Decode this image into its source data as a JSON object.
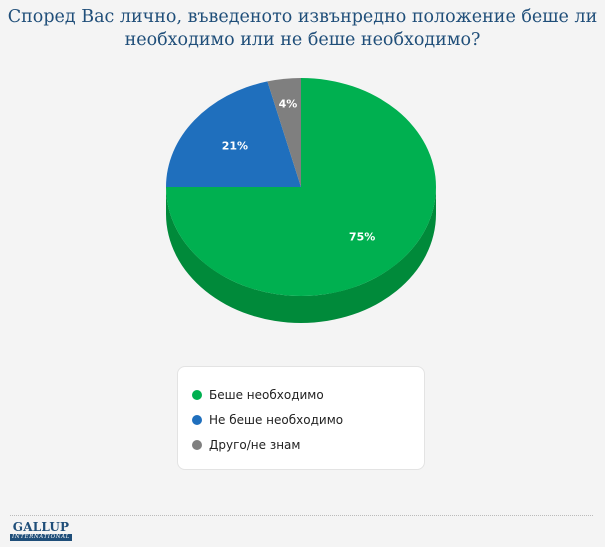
{
  "title_lines": [
    "Според Вас лично, въведеното извънредно положение беше ли",
    "необходимо или не беше необходимо?"
  ],
  "chart_data": {
    "type": "pie",
    "title": "Според Вас лично, въведеното извънредно положение беше ли необходимо или не беше необходимо?",
    "categories": [
      "Беше необходимо",
      "Не беше необходимо",
      "Друго/не знам"
    ],
    "values": [
      75,
      21,
      4
    ],
    "labels": [
      "75%",
      "21%",
      "4%"
    ],
    "colors": [
      "#00b050",
      "#1f6fbd",
      "#7f7f7f"
    ],
    "side_colors": [
      "#008a3a",
      "#175a9c",
      "#606060"
    ],
    "three_d": true,
    "legend_placement": "bottom"
  },
  "legend": [
    {
      "label": "Беше необходимо",
      "color": "#00b050"
    },
    {
      "label": "Не беше необходимо",
      "color": "#1f6fbd"
    },
    {
      "label": "Друго/не знам",
      "color": "#7f7f7f"
    }
  ],
  "logo": {
    "main": "GALLUP",
    "sub": "INTERNATIONAL"
  }
}
